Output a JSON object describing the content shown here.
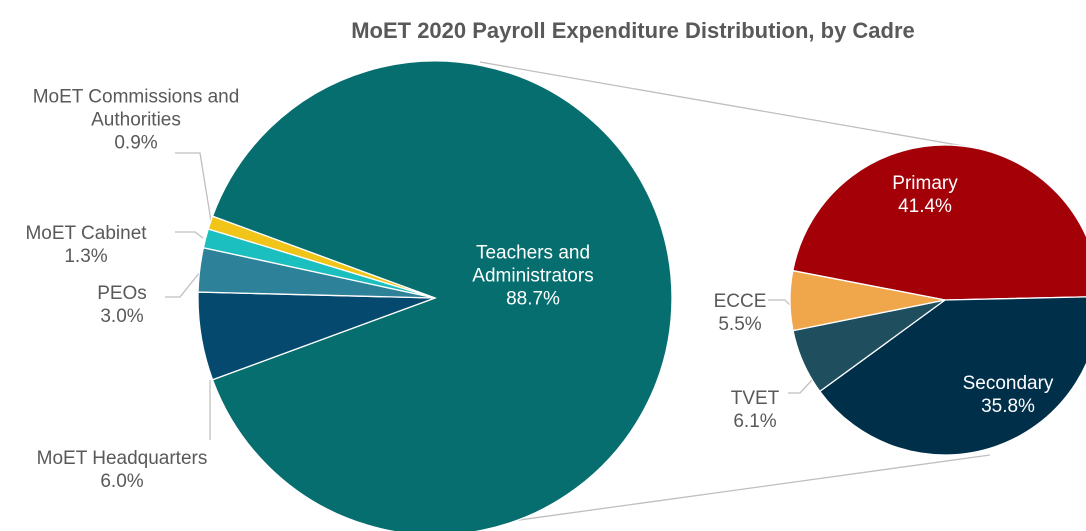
{
  "chart_data": [
    {
      "type": "pie",
      "title": "MoET 2020 Payroll Expenditure Distribution, by Cadre",
      "categories": [
        "Teachers and Administrators",
        "MoET Headquarters",
        "PEOs",
        "MoET Cabinet",
        "MoET Commissions and Authorities"
      ],
      "values": [
        88.7,
        6.0,
        3.0,
        1.3,
        0.9
      ],
      "value_labels": [
        "88.7%",
        "6.0%",
        "3.0%",
        "1.3%",
        "0.9%"
      ],
      "colors": [
        "#066e6e",
        "#054a6e",
        "#2d8198",
        "#1bbfc0",
        "#f0c419"
      ]
    },
    {
      "type": "pie",
      "categories": [
        "Primary",
        "Secondary",
        "TVET",
        "ECCE"
      ],
      "values": [
        41.4,
        35.8,
        6.1,
        5.5
      ],
      "value_labels": [
        "41.4%",
        "35.8%",
        "6.1%",
        "5.5%"
      ],
      "colors": [
        "#a30008",
        "#002f4a",
        "#1f4e5f",
        "#f0a64a"
      ]
    }
  ]
}
